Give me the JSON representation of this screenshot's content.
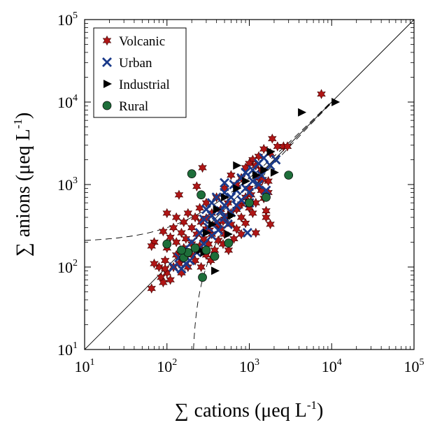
{
  "chart_data": {
    "type": "scatter",
    "x_scale": "log",
    "y_scale": "log",
    "xlim": [
      10,
      100000
    ],
    "ylim": [
      10,
      100000
    ],
    "xlabel": {
      "sum_symbol": "∑",
      "text": "cations (μeq L",
      "sup": "-1",
      "close": ")"
    },
    "ylabel": {
      "sum_symbol": "∑",
      "text": "anions (μeq L",
      "sup": "-1",
      "close": ")"
    },
    "x_ticks": [
      {
        "value": 10,
        "base": "10",
        "exp": "1"
      },
      {
        "value": 100,
        "base": "10",
        "exp": "2"
      },
      {
        "value": 1000,
        "base": "10",
        "exp": "3"
      },
      {
        "value": 10000,
        "base": "10",
        "exp": "4"
      },
      {
        "value": 100000,
        "base": "10",
        "exp": "5"
      }
    ],
    "y_ticks": [
      {
        "value": 10,
        "base": "10",
        "exp": "1"
      },
      {
        "value": 100,
        "base": "10",
        "exp": "2"
      },
      {
        "value": 1000,
        "base": "10",
        "exp": "3"
      },
      {
        "value": 10000,
        "base": "10",
        "exp": "4"
      },
      {
        "value": 100000,
        "base": "10",
        "exp": "5"
      }
    ],
    "grid": false,
    "legend_position": "top-left",
    "reference_lines": [
      "1:1 line",
      "dashed bounds"
    ],
    "series": [
      {
        "name": "Volcanic",
        "marker": "star",
        "color": "#b01515",
        "points": [
          [
            7500,
            12500
          ],
          [
            1900,
            3600
          ],
          [
            2200,
            2900
          ],
          [
            2600,
            2900
          ],
          [
            2900,
            2900
          ],
          [
            1500,
            2700
          ],
          [
            1800,
            2400
          ],
          [
            1300,
            2200
          ],
          [
            1100,
            2000
          ],
          [
            1000,
            1800
          ],
          [
            1200,
            1700
          ],
          [
            900,
            1600
          ],
          [
            270,
            1600
          ],
          [
            1400,
            1500
          ],
          [
            600,
            1300
          ],
          [
            800,
            1200
          ],
          [
            1300,
            1200
          ],
          [
            1700,
            1100
          ],
          [
            700,
            1000
          ],
          [
            230,
            950
          ],
          [
            500,
            900
          ],
          [
            1000,
            900
          ],
          [
            1400,
            850
          ],
          [
            1700,
            800
          ],
          [
            140,
            750
          ],
          [
            400,
            700
          ],
          [
            900,
            700
          ],
          [
            1500,
            680
          ],
          [
            300,
            600
          ],
          [
            550,
            600
          ],
          [
            800,
            580
          ],
          [
            1200,
            600
          ],
          [
            250,
            520
          ],
          [
            450,
            500
          ],
          [
            700,
            500
          ],
          [
            1000,
            520
          ],
          [
            1600,
            480
          ],
          [
            100,
            450
          ],
          [
            180,
            450
          ],
          [
            350,
            450
          ],
          [
            600,
            450
          ],
          [
            1100,
            450
          ],
          [
            130,
            400
          ],
          [
            220,
            400
          ],
          [
            300,
            390
          ],
          [
            500,
            380
          ],
          [
            800,
            400
          ],
          [
            1600,
            400
          ],
          [
            160,
            350
          ],
          [
            260,
            350
          ],
          [
            400,
            330
          ],
          [
            600,
            330
          ],
          [
            900,
            340
          ],
          [
            1800,
            330
          ],
          [
            120,
            300
          ],
          [
            200,
            300
          ],
          [
            300,
            290
          ],
          [
            450,
            290
          ],
          [
            700,
            290
          ],
          [
            90,
            270
          ],
          [
            150,
            260
          ],
          [
            230,
            250
          ],
          [
            350,
            250
          ],
          [
            500,
            250
          ],
          [
            800,
            250
          ],
          [
            1200,
            260
          ],
          [
            110,
            230
          ],
          [
            170,
            220
          ],
          [
            280,
            220
          ],
          [
            420,
            210
          ],
          [
            650,
            220
          ],
          [
            70,
            200
          ],
          [
            130,
            200
          ],
          [
            200,
            190
          ],
          [
            320,
            190
          ],
          [
            480,
            190
          ],
          [
            100,
            170
          ],
          [
            160,
            170
          ],
          [
            240,
            160
          ],
          [
            380,
            160
          ],
          [
            560,
            160
          ],
          [
            65,
            180
          ],
          [
            130,
            140
          ],
          [
            200,
            140
          ],
          [
            300,
            140
          ],
          [
            95,
            120
          ],
          [
            150,
            120
          ],
          [
            220,
            120
          ],
          [
            340,
            120
          ],
          [
            80,
            100
          ],
          [
            120,
            100
          ],
          [
            180,
            100
          ],
          [
            260,
            100
          ],
          [
            70,
            110
          ],
          [
            100,
            85
          ],
          [
            150,
            85
          ],
          [
            85,
            75
          ],
          [
            110,
            70
          ],
          [
            90,
            65
          ],
          [
            65,
            55
          ],
          [
            95,
            95
          ],
          [
            140,
            110
          ],
          [
            250,
            180
          ],
          [
            420,
            330
          ],
          [
            550,
            420
          ],
          [
            750,
            550
          ],
          [
            1050,
            750
          ],
          [
            1300,
            950
          ],
          [
            1450,
            1150
          ],
          [
            330,
            280
          ],
          [
            480,
            360
          ]
        ]
      },
      {
        "name": "Urban",
        "marker": "x",
        "color": "#1a3a8a",
        "points": [
          [
            2100,
            2000
          ],
          [
            1500,
            2100
          ],
          [
            1300,
            1800
          ],
          [
            1800,
            1700
          ],
          [
            1100,
            1500
          ],
          [
            900,
            1400
          ],
          [
            1400,
            1300
          ],
          [
            800,
            1200
          ],
          [
            1100,
            1100
          ],
          [
            500,
            1050
          ],
          [
            650,
            1000
          ],
          [
            1300,
            1000
          ],
          [
            900,
            900
          ],
          [
            1600,
            850
          ],
          [
            700,
            850
          ],
          [
            500,
            800
          ],
          [
            1000,
            800
          ],
          [
            400,
            700
          ],
          [
            600,
            700
          ],
          [
            800,
            650
          ],
          [
            350,
            600
          ],
          [
            500,
            560
          ],
          [
            700,
            560
          ],
          [
            1000,
            600
          ],
          [
            300,
            500
          ],
          [
            450,
            480
          ],
          [
            600,
            460
          ],
          [
            350,
            420
          ],
          [
            500,
            400
          ],
          [
            280,
            380
          ],
          [
            400,
            350
          ],
          [
            550,
            330
          ],
          [
            320,
            300
          ],
          [
            420,
            280
          ],
          [
            950,
            260
          ],
          [
            250,
            260
          ],
          [
            350,
            240
          ],
          [
            200,
            200
          ],
          [
            280,
            190
          ],
          [
            160,
            160
          ],
          [
            230,
            150
          ],
          [
            140,
            130
          ],
          [
            190,
            120
          ],
          [
            120,
            100
          ],
          [
            150,
            95
          ],
          [
            170,
            110
          ]
        ]
      },
      {
        "name": "Industrial",
        "marker": "triangle-right",
        "color": "#000000",
        "points": [
          [
            11000,
            10000
          ],
          [
            4300,
            7500
          ],
          [
            1800,
            2500
          ],
          [
            700,
            1700
          ],
          [
            1500,
            1500
          ],
          [
            2000,
            1400
          ],
          [
            1200,
            1300
          ],
          [
            900,
            1100
          ],
          [
            700,
            900
          ],
          [
            500,
            700
          ],
          [
            1000,
            600
          ],
          [
            400,
            500
          ],
          [
            600,
            420
          ],
          [
            350,
            330
          ],
          [
            300,
            260
          ],
          [
            550,
            250
          ],
          [
            380,
            90
          ],
          [
            280,
            150
          ],
          [
            250,
            160
          ]
        ]
      },
      {
        "name": "Rural",
        "marker": "circle",
        "color": "#1e6e3a",
        "points": [
          [
            200,
            1350
          ],
          [
            260,
            750
          ],
          [
            3000,
            1300
          ],
          [
            1600,
            700
          ],
          [
            1000,
            600
          ],
          [
            100,
            190
          ],
          [
            560,
            195
          ],
          [
            220,
            170
          ],
          [
            380,
            135
          ],
          [
            300,
            160
          ],
          [
            160,
            130
          ],
          [
            270,
            75
          ],
          [
            180,
            150
          ],
          [
            150,
            160
          ]
        ]
      }
    ]
  }
}
